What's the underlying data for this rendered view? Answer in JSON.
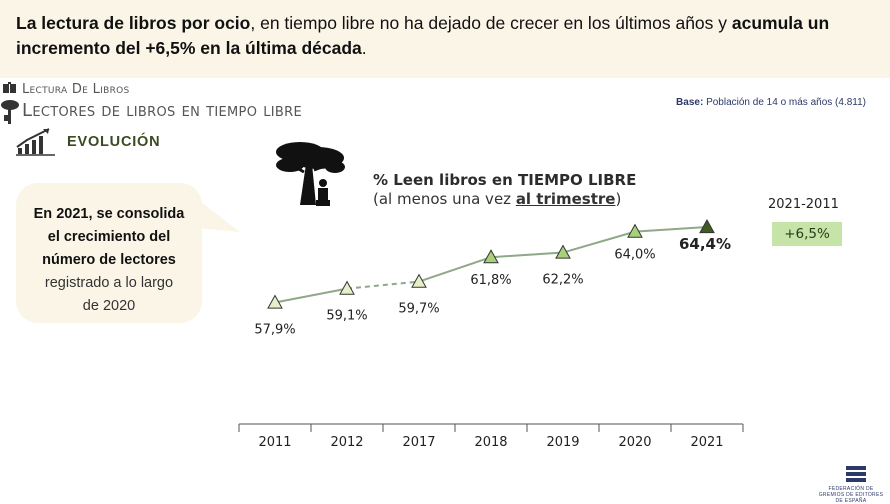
{
  "header": {
    "headline_bold_1": "La lectura de libros por ocio",
    "headline_plain": ", en tiempo libre no ha dejado de crecer en los últimos años y ",
    "headline_bold_2": "acumula un incremento del +6,5% en la última década",
    "headline_end": "."
  },
  "section": {
    "kicker": "Lectura De Libros",
    "subtitle": "Lectores de libros en tiempo libre",
    "evolution": "EVOLUCIÓN"
  },
  "base": {
    "label": "Base:",
    "text": " Población de 14 o más años (4.811)"
  },
  "callout": {
    "bold_lines": [
      "En 2021, se consolida",
      "el crecimiento del",
      "número de lectores"
    ],
    "plain_lines": [
      "registrado a lo largo",
      "de 2020"
    ]
  },
  "chart_title": {
    "line1": "% Leen libros en TIEMPO LIBRE",
    "line2_prefix": "(al menos una vez ",
    "line2_underlined": "al trimestre",
    "line2_suffix": ")"
  },
  "period": {
    "label": "2021-2011",
    "change": "+6,5%"
  },
  "logo": {
    "text": "FEDERACIÓN DE GREMIOS DE EDITORES DE ESPAÑA"
  },
  "chart_data": {
    "type": "line",
    "categories": [
      "2011",
      "2012",
      "2017",
      "2018",
      "2019",
      "2020",
      "2021"
    ],
    "values": [
      57.9,
      59.1,
      59.7,
      61.8,
      62.2,
      64.0,
      64.4
    ],
    "labels": [
      "57,9%",
      "59,1%",
      "59,7%",
      "61,8%",
      "62,2%",
      "64,0%",
      "64,4%"
    ],
    "dashed_segment": [
      "2012",
      "2017"
    ],
    "ylim": [
      57.0,
      65.0
    ],
    "grid": false,
    "colors": {
      "line": "#8fa88a",
      "marker_light": "#e6efc8",
      "marker_mid": "#a8cf7a",
      "marker_dark": "#3e5c22"
    },
    "marker_shades": [
      "light",
      "light",
      "light",
      "mid",
      "mid",
      "mid",
      "dark"
    ]
  }
}
